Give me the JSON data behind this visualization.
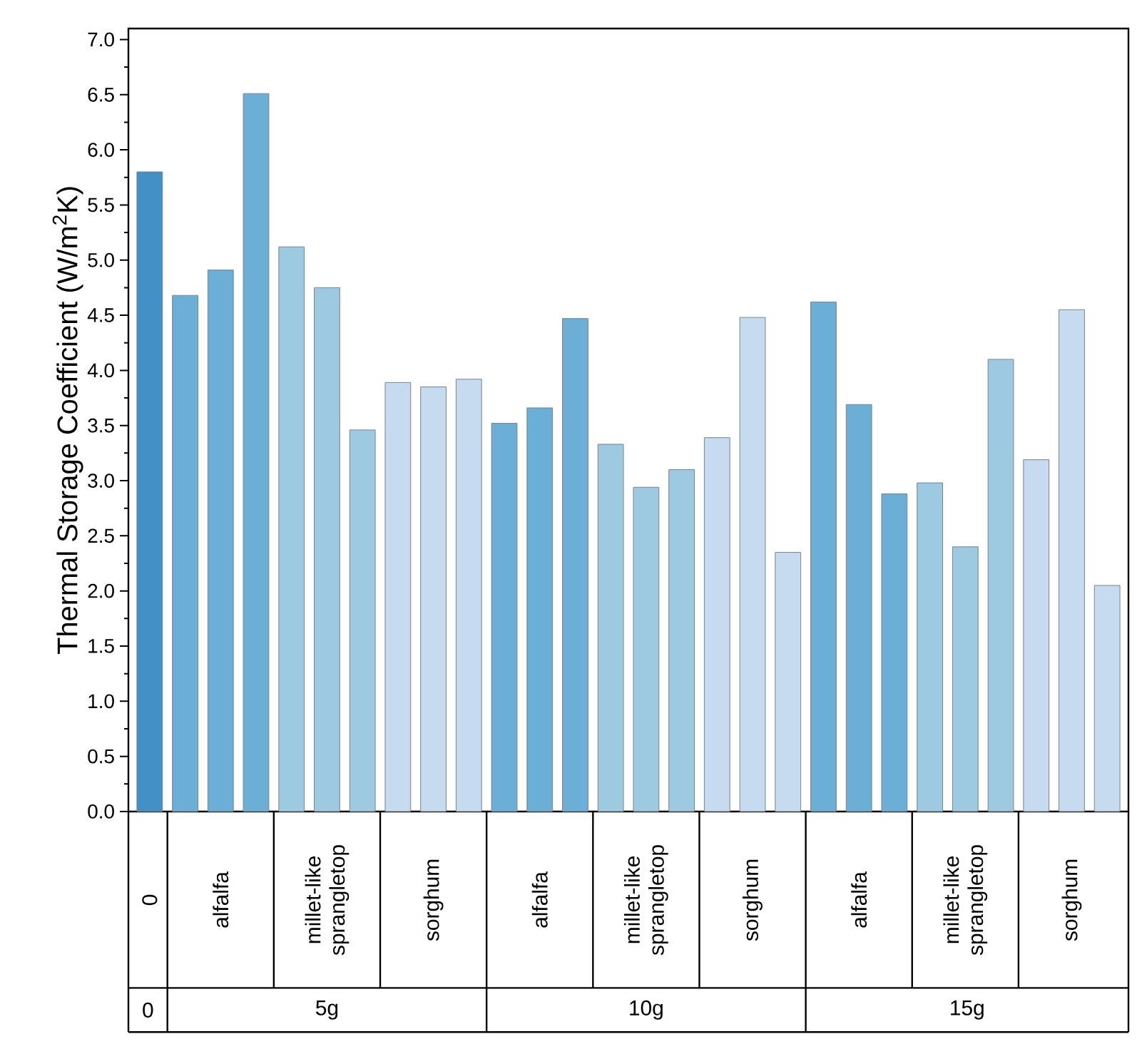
{
  "chart_data": {
    "type": "bar",
    "ylabel": "Thermal Storage Coefficient (W/m$^{2}$K)",
    "categories": [
      "0",
      null,
      "alfalfa",
      null,
      null,
      "millet-like sprangletop",
      null,
      null,
      "sorghum",
      null,
      null,
      "alfalfa",
      null,
      null,
      "millet-like sprangletop",
      null,
      null,
      "sorghum",
      null,
      null,
      "alfalfa",
      null,
      null,
      "millet-like sprangletop",
      null,
      null,
      "sorghum",
      null
    ],
    "values": [
      5.8,
      4.68,
      4.91,
      6.51,
      5.12,
      4.75,
      3.46,
      3.89,
      3.85,
      3.92,
      3.52,
      3.66,
      4.47,
      3.33,
      2.94,
      3.1,
      3.39,
      4.48,
      2.35,
      4.62,
      3.69,
      2.88,
      2.98,
      2.4,
      4.1,
      3.19,
      4.55,
      2.05
    ],
    "colors": [
      "#4290c6",
      "#6baed6",
      "#6baed6",
      "#6baed6",
      "#9ecae1",
      "#9ecae1",
      "#9ecae1",
      "#c6dbef",
      "#c6dbef",
      "#c6dbef",
      "#6baed6",
      "#6baed6",
      "#6baed6",
      "#9ecae1",
      "#9ecae1",
      "#9ecae1",
      "#c6dbef",
      "#c6dbef",
      "#c6dbef",
      "#6baed6",
      "#6baed6",
      "#6baed6",
      "#9ecae1",
      "#9ecae1",
      "#9ecae1",
      "#c6dbef",
      "#c6dbef",
      "#c6dbef"
    ],
    "ylim": [
      0,
      7.1
    ],
    "yticks": [
      {
        "value": 0,
        "label": "0.0"
      },
      {
        "value": 0.5,
        "label": "0.5"
      },
      {
        "value": 1,
        "label": "1.0"
      },
      {
        "value": 1.5,
        "label": "1.5"
      },
      {
        "value": 2,
        "label": "2.0"
      },
      {
        "value": 2.5,
        "label": "2.5"
      },
      {
        "value": 3,
        "label": "3.0"
      },
      {
        "value": 3.5,
        "label": "3.5"
      },
      {
        "value": 4,
        "label": "4.0"
      },
      {
        "value": 4.5,
        "label": "4.5"
      },
      {
        "value": 5,
        "label": "5.0"
      },
      {
        "value": 5.5,
        "label": "5.5"
      },
      {
        "value": 6,
        "label": "6.0"
      },
      {
        "value": 6.5,
        "label": "6.5"
      },
      {
        "value": 7,
        "label": "7.0"
      }
    ],
    "annotations": [
      "0",
      "5g",
      "10g",
      "15g"
    ]
  }
}
